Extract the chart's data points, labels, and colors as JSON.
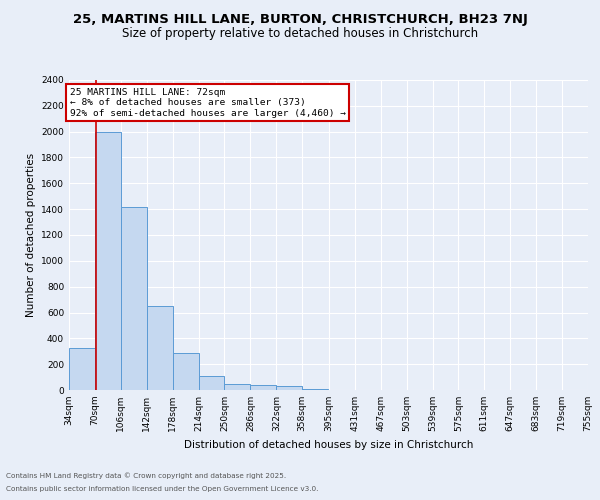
{
  "title": "25, MARTINS HILL LANE, BURTON, CHRISTCHURCH, BH23 7NJ",
  "subtitle": "Size of property relative to detached houses in Christchurch",
  "xlabel": "Distribution of detached houses by size in Christchurch",
  "ylabel": "Number of detached properties",
  "bar_values": [
    325,
    2000,
    1420,
    650,
    290,
    105,
    50,
    40,
    30,
    10,
    0,
    0,
    0,
    0,
    0,
    0,
    0,
    0,
    0,
    0
  ],
  "bin_edges": [
    34,
    70,
    106,
    142,
    178,
    214,
    250,
    286,
    322,
    358,
    395,
    431,
    467,
    503,
    539,
    575,
    611,
    647,
    683,
    719,
    755
  ],
  "tick_labels": [
    "34sqm",
    "70sqm",
    "106sqm",
    "142sqm",
    "178sqm",
    "214sqm",
    "250sqm",
    "286sqm",
    "322sqm",
    "358sqm",
    "395sqm",
    "431sqm",
    "467sqm",
    "503sqm",
    "539sqm",
    "575sqm",
    "611sqm",
    "647sqm",
    "683sqm",
    "719sqm",
    "755sqm"
  ],
  "bar_color": "#c5d8f0",
  "bar_edge_color": "#5b9bd5",
  "property_size": 72,
  "vline_color": "#cc0000",
  "annotation_text": "25 MARTINS HILL LANE: 72sqm\n← 8% of detached houses are smaller (373)\n92% of semi-detached houses are larger (4,460) →",
  "annotation_box_color": "#cc0000",
  "ylim": [
    0,
    2400
  ],
  "yticks": [
    0,
    200,
    400,
    600,
    800,
    1000,
    1200,
    1400,
    1600,
    1800,
    2000,
    2200,
    2400
  ],
  "bg_color": "#e8eef8",
  "fig_bg_color": "#e8eef8",
  "footer_line1": "Contains HM Land Registry data © Crown copyright and database right 2025.",
  "footer_line2": "Contains public sector information licensed under the Open Government Licence v3.0.",
  "title_fontsize": 9.5,
  "subtitle_fontsize": 8.5,
  "tick_fontsize": 6.5,
  "ylabel_fontsize": 7.5,
  "xlabel_fontsize": 7.5,
  "annotation_fontsize": 6.8,
  "footer_fontsize": 5.2
}
